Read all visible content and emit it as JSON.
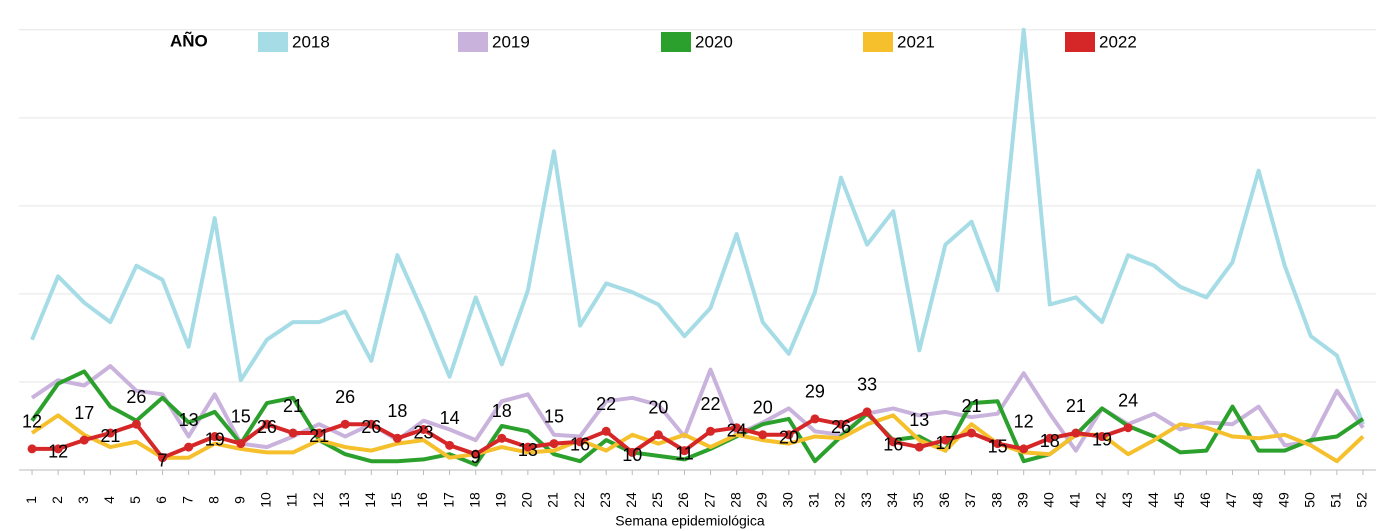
{
  "chart_data": {
    "type": "line",
    "legend_title": "AÑO",
    "xlabel": "Semana epidemiológica",
    "categories": [
      "1",
      "2",
      "3",
      "4",
      "5",
      "6",
      "7",
      "8",
      "9",
      "10",
      "11",
      "12",
      "13",
      "14",
      "15",
      "16",
      "17",
      "18",
      "19",
      "20",
      "21",
      "22",
      "23",
      "24",
      "25",
      "26",
      "27",
      "28",
      "29",
      "30",
      "31",
      "32",
      "33",
      "34",
      "35",
      "36",
      "37",
      "38",
      "39",
      "40",
      "41",
      "42",
      "43",
      "44",
      "45",
      "46",
      "47",
      "48",
      "49",
      "50",
      "51",
      "52"
    ],
    "ylim": [
      0,
      255
    ],
    "yticks": [
      0,
      50,
      100,
      150,
      200,
      250
    ],
    "grid": true,
    "series": [
      {
        "name": "2018",
        "color": "#a6dce6",
        "values": [
          74,
          110,
          95,
          84,
          116,
          108,
          70,
          143,
          51,
          74,
          84,
          84,
          90,
          62,
          122,
          89,
          53,
          98,
          60,
          102,
          181,
          82,
          106,
          101,
          94,
          76,
          92,
          134,
          84,
          66,
          101,
          166,
          128,
          147,
          68,
          128,
          141,
          102,
          250,
          94,
          98,
          84,
          122,
          116,
          104,
          98,
          118,
          170,
          116,
          76,
          65,
          26
        ]
      },
      {
        "name": "2019",
        "color": "#c9b3dc",
        "values": [
          41,
          51,
          48,
          59,
          45,
          43,
          19,
          43,
          15,
          13,
          19,
          26,
          19,
          26,
          17,
          28,
          23,
          17,
          39,
          43,
          20,
          19,
          39,
          41,
          37,
          19,
          57,
          20,
          27,
          35,
          22,
          20,
          32,
          35,
          31,
          33,
          30,
          32,
          55,
          32,
          11,
          35,
          26,
          32,
          23,
          27,
          26,
          36,
          14,
          16,
          45,
          24
        ]
      },
      {
        "name": "2020",
        "color": "#2ca02c",
        "values": [
          28,
          49,
          56,
          36,
          28,
          41,
          27,
          33,
          15,
          38,
          41,
          17,
          9,
          5,
          5,
          6,
          9,
          3,
          25,
          22,
          9,
          5,
          17,
          10,
          8,
          6,
          12,
          19,
          26,
          29,
          5,
          19,
          32,
          17,
          19,
          11,
          38,
          39,
          5,
          9,
          20,
          35,
          25,
          19,
          10,
          11,
          36,
          11,
          11,
          17,
          19,
          29
        ]
      },
      {
        "name": "2021",
        "color": "#f5c02c",
        "values": [
          21,
          31,
          20,
          13,
          16,
          7,
          7,
          15,
          12,
          10,
          10,
          17,
          13,
          11,
          15,
          17,
          7,
          9,
          13,
          10,
          11,
          17,
          11,
          20,
          15,
          20,
          13,
          20,
          17,
          15,
          19,
          18,
          26,
          31,
          17,
          11,
          26,
          15,
          10,
          9,
          20,
          20,
          9,
          17,
          26,
          24,
          19,
          18,
          20,
          14,
          5,
          19
        ]
      },
      {
        "name": "2022",
        "color": "#d62728",
        "data_labels": true,
        "values": [
          12,
          12,
          17,
          21,
          26,
          7,
          13,
          19,
          15,
          26,
          21,
          21,
          26,
          26,
          18,
          23,
          14,
          9,
          18,
          13,
          15,
          16,
          22,
          10,
          20,
          11,
          22,
          24,
          20,
          20,
          29,
          26,
          33,
          16,
          13,
          17,
          21,
          15,
          12,
          18,
          21,
          19,
          24,
          null,
          null,
          null,
          null,
          null,
          null,
          null,
          null,
          null
        ]
      }
    ]
  }
}
